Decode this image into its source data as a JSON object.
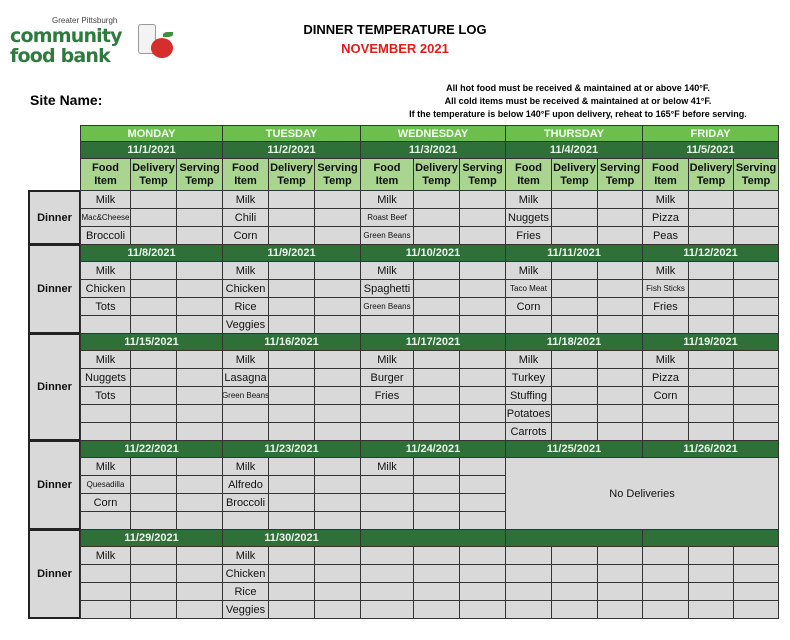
{
  "logo": {
    "tagline": "Greater Pittsburgh",
    "line1": "community",
    "line2": "food bank"
  },
  "title": "DINNER TEMPERATURE LOG",
  "month": "NOVEMBER 2021",
  "site_label": "Site Name:",
  "rules": [
    "All hot food must be received & maintained at or above 140°F.",
    "All cold items must be received & maintained at or below 41°F.",
    "If the temperature is below 140°F upon delivery, reheat to 165°F before serving."
  ],
  "days": [
    "MONDAY",
    "TUESDAY",
    "WEDNESDAY",
    "THURSDAY",
    "FRIDAY"
  ],
  "column_headers": [
    "Food Item",
    "Delivery Temp",
    "Serving Temp"
  ],
  "row_label": "Dinner",
  "colors": {
    "day": "#6cbf4c",
    "date": "#2f7038",
    "header": "#a9d590",
    "cell": "#d9d9d9",
    "title_red": "#e31b1b"
  },
  "weeks": [
    {
      "rows": 3,
      "dates": [
        "11/1/2021",
        "11/2/2021",
        "11/3/2021",
        "11/4/2021",
        "11/5/2021"
      ],
      "items": [
        [
          "Milk",
          "Mac&Cheese",
          "Broccoli"
        ],
        [
          "Milk",
          "Chili",
          "Corn"
        ],
        [
          "Milk",
          "Roast Beef",
          "Green Beans"
        ],
        [
          "Milk",
          "Nuggets",
          "Fries"
        ],
        [
          "Milk",
          "Pizza",
          "Peas"
        ]
      ]
    },
    {
      "rows": 4,
      "dates": [
        "11/8/2021",
        "11/9/2021",
        "11/10/2021",
        "11/11/2021",
        "11/12/2021"
      ],
      "items": [
        [
          "Milk",
          "Chicken",
          "Tots"
        ],
        [
          "Milk",
          "Chicken",
          "Rice",
          "Veggies"
        ],
        [
          "Milk",
          "Spaghetti",
          "Green Beans"
        ],
        [
          "Milk",
          "Taco Meat",
          "Corn"
        ],
        [
          "Milk",
          "Fish Sticks",
          "Fries"
        ]
      ]
    },
    {
      "rows": 5,
      "dates": [
        "11/15/2021",
        "11/16/2021",
        "11/17/2021",
        "11/18/2021",
        "11/19/2021"
      ],
      "items": [
        [
          "Milk",
          "Nuggets",
          "Tots"
        ],
        [
          "Milk",
          "Lasagna",
          "Green Beans"
        ],
        [
          "Milk",
          "Burger",
          "Fries"
        ],
        [
          "Milk",
          "Turkey",
          "Stuffing",
          "Potatoes",
          "Carrots"
        ],
        [
          "Milk",
          "Pizza",
          "Corn"
        ]
      ]
    },
    {
      "rows": 4,
      "dates": [
        "11/22/2021",
        "11/23/2021",
        "11/24/2021",
        "11/25/2021",
        "11/26/2021"
      ],
      "items": [
        [
          "Milk",
          "Quesadilla",
          "Corn"
        ],
        [
          "Milk",
          "Alfredo",
          "Broccoli"
        ],
        [
          "Milk"
        ],
        [],
        []
      ],
      "no_delivery_text": "No Deliveries"
    },
    {
      "rows": 4,
      "dates": [
        "11/29/2021",
        "11/30/2021",
        "",
        "",
        ""
      ],
      "items": [
        [
          "Milk"
        ],
        [
          "Milk",
          "Chicken",
          "Rice",
          "Veggies"
        ],
        [],
        [],
        []
      ]
    }
  ]
}
